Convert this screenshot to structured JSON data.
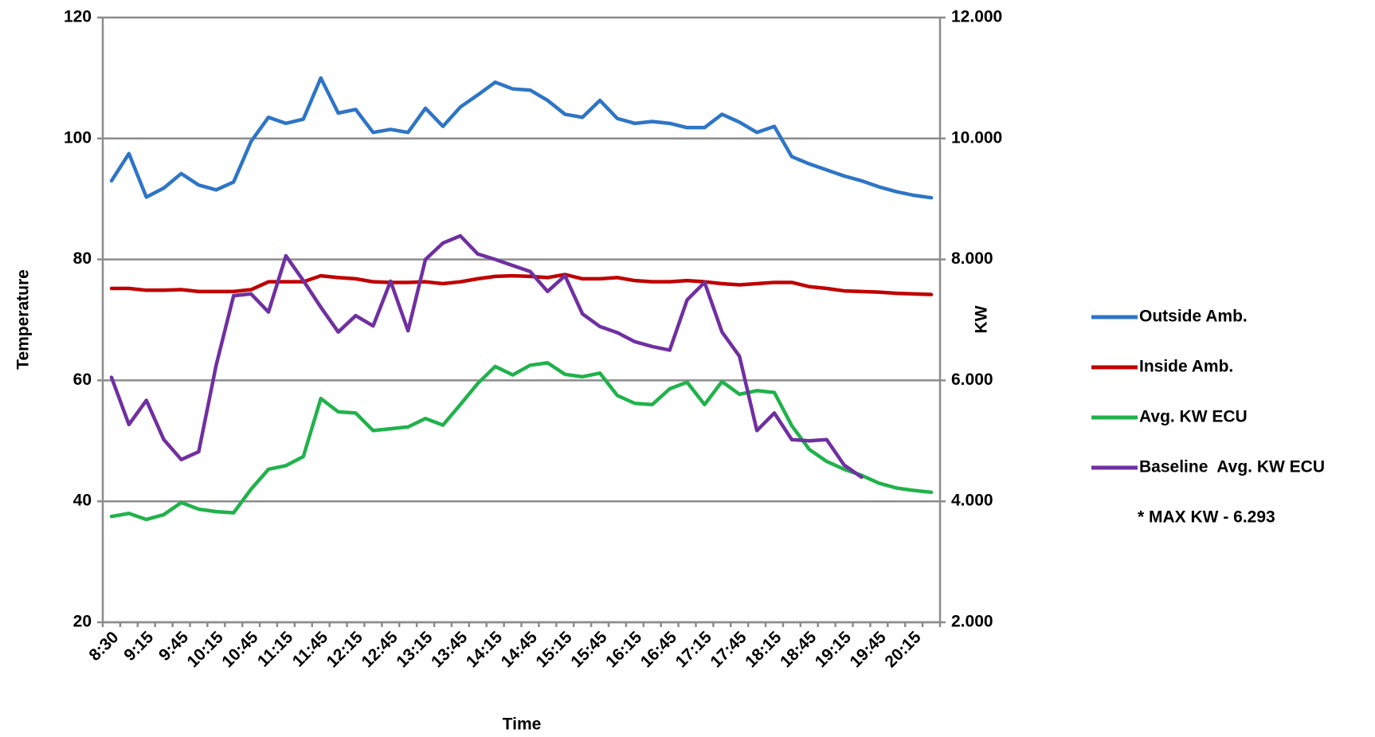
{
  "chart_data": {
    "type": "line",
    "x_label": "Time",
    "y_label": "Temperature",
    "y2_label": "KW",
    "annotation": "* MAX KW - 6.293",
    "legend": "right",
    "grid": true,
    "categories": [
      "8:30",
      null,
      "9:15",
      null,
      "9:45",
      null,
      "10:15",
      null,
      "10:45",
      null,
      "11:15",
      null,
      "11:45",
      null,
      "12:15",
      null,
      "12:45",
      null,
      "13:15",
      null,
      "13:45",
      null,
      "14:15",
      null,
      "14:45",
      null,
      "15:15",
      null,
      "15:45",
      null,
      "16:15",
      null,
      "16:45",
      null,
      "17:15",
      null,
      "17:45",
      null,
      "18:15",
      null,
      "18:45",
      null,
      "19:15",
      null,
      "19:45",
      null,
      "20:15",
      null
    ],
    "ylim": [
      20,
      120
    ],
    "yticks": [
      20,
      40,
      60,
      80,
      100,
      120
    ],
    "y2lim": [
      2,
      12
    ],
    "y2ticks": [
      {
        "value": 2,
        "label": "2.000"
      },
      {
        "value": 4,
        "label": "4.000"
      },
      {
        "value": 6,
        "label": "6.000"
      },
      {
        "value": 8,
        "label": "8.000"
      },
      {
        "value": 10,
        "label": "10.000"
      },
      {
        "value": 12,
        "label": "12.000"
      }
    ],
    "series": [
      {
        "name": "Outside Amb.",
        "color": "#2e75c6",
        "values": [
          93,
          97.5,
          90.3,
          91.8,
          94.2,
          92.3,
          91.5,
          92.8,
          99.5,
          103.5,
          102.5,
          103.2,
          110,
          104.2,
          104.8,
          101,
          101.5,
          101,
          105,
          102,
          105.2,
          107.2,
          109.3,
          108.2,
          108,
          106.3,
          104,
          103.5,
          106.3,
          103.3,
          102.5,
          102.8,
          102.5,
          101.8,
          101.8,
          104,
          102.7,
          101,
          102,
          97,
          95.8,
          94.8,
          93.8,
          93,
          92,
          91.2,
          90.6,
          90.2
        ]
      },
      {
        "name": "Inside Amb.",
        "color": "#c00000",
        "values": [
          75.2,
          75.2,
          74.9,
          74.9,
          75,
          74.7,
          74.7,
          74.7,
          75,
          76.3,
          76.3,
          76.3,
          77.3,
          77,
          76.8,
          76.3,
          76.2,
          76.2,
          76.3,
          76,
          76.3,
          76.8,
          77.2,
          77.3,
          77.2,
          77,
          77.5,
          76.8,
          76.8,
          77,
          76.5,
          76.3,
          76.3,
          76.5,
          76.3,
          76,
          75.8,
          76,
          76.2,
          76.2,
          75.5,
          75.2,
          74.8,
          74.7,
          74.6,
          74.4,
          74.3,
          74.2
        ]
      },
      {
        "name": "Avg. KW ECU",
        "color": "#21b24b",
        "axis": "y2",
        "values": [
          3.75,
          3.8,
          3.7,
          3.78,
          3.98,
          3.87,
          3.83,
          3.81,
          4.2,
          4.53,
          4.59,
          4.74,
          5.7,
          5.48,
          5.46,
          5.17,
          5.2,
          5.23,
          5.37,
          5.26,
          5.6,
          5.95,
          6.23,
          6.09,
          6.25,
          6.29,
          6.1,
          6.06,
          6.12,
          5.75,
          5.62,
          5.6,
          5.86,
          5.97,
          5.6,
          5.98,
          5.77,
          5.83,
          5.8,
          5.25,
          4.86,
          4.66,
          4.53,
          4.43,
          4.3,
          4.22,
          4.18,
          4.15
        ]
      },
      {
        "name": "Baseline  Avg. KW ECU",
        "color": "#7030a0",
        "axis": "y2",
        "values": [
          6.05,
          5.27,
          5.67,
          5.02,
          4.69,
          4.82,
          6.25,
          7.4,
          7.43,
          7.13,
          8.06,
          7.65,
          7.21,
          6.8,
          7.07,
          6.9,
          7.64,
          6.82,
          8,
          8.27,
          8.39,
          8.09,
          8,
          7.9,
          7.8,
          7.47,
          7.73,
          7.1,
          6.89,
          6.79,
          6.64,
          6.56,
          6.5,
          7.33,
          7.62,
          6.8,
          6.4,
          5.17,
          5.46,
          5.02,
          5,
          5.02,
          4.6,
          4.4,
          null,
          null,
          null,
          null
        ]
      }
    ]
  }
}
